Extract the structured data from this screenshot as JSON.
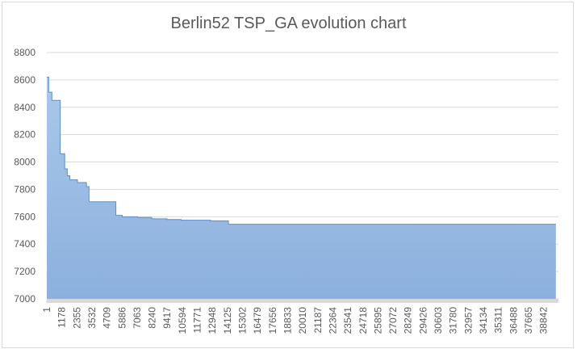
{
  "chart_data": {
    "type": "area",
    "title": "Berlin52 TSP_GA evolution chart",
    "xlabel": "",
    "ylabel": "",
    "ylim": [
      7000,
      8800
    ],
    "yticks": [
      7000,
      7200,
      7400,
      7600,
      7800,
      8000,
      8200,
      8400,
      8600,
      8800
    ],
    "xlim": [
      1,
      40000
    ],
    "xticks": [
      1,
      1178,
      2355,
      3532,
      4709,
      5886,
      7063,
      8240,
      9417,
      10594,
      11771,
      12948,
      14125,
      15302,
      16479,
      17656,
      18833,
      20010,
      21187,
      22364,
      23541,
      24718,
      25895,
      27072,
      28249,
      29426,
      30603,
      31780,
      32957,
      34134,
      35311,
      36488,
      37665,
      38842
    ],
    "grid": true,
    "legend": "none",
    "colors": {
      "fill": "#9dc0e6",
      "fill_bottom": "#8db2df",
      "stroke": "#5b8fc7",
      "grid": "#d9d9d9",
      "text": "#595959"
    },
    "x": [
      1,
      70,
      150,
      250,
      400,
      700,
      1050,
      1350,
      1400,
      1600,
      1800,
      2400,
      2700,
      3100,
      3300,
      3400,
      5000,
      5400,
      5900,
      7100,
      8200,
      9400,
      10500,
      11800,
      12800,
      14200,
      22000,
      30000,
      39800
    ],
    "values": [
      8620,
      8620,
      8510,
      8510,
      8450,
      8450,
      8060,
      8060,
      7950,
      7900,
      7870,
      7850,
      7850,
      7820,
      7710,
      7710,
      7710,
      7610,
      7600,
      7595,
      7585,
      7580,
      7575,
      7575,
      7570,
      7545,
      7545,
      7545,
      7545
    ]
  }
}
